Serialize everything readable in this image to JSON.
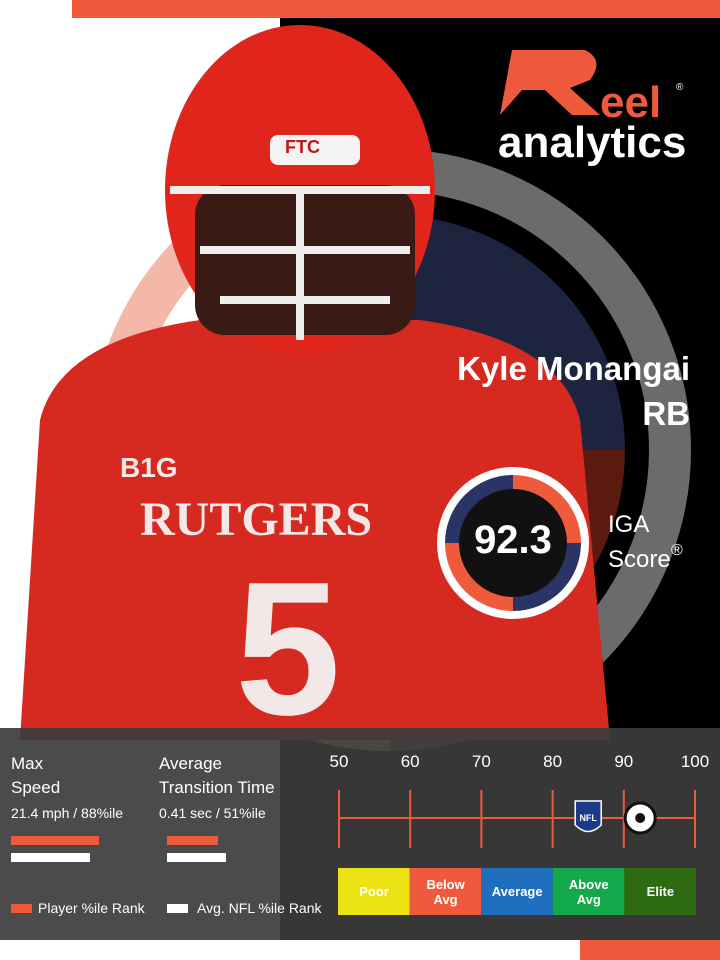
{
  "logo": {
    "word1": "eel",
    "word2": "analytics",
    "reg": "®"
  },
  "photo": {
    "helmet": "FTC",
    "patch": "B1G",
    "jersey": "RUTGERS",
    "number": "5"
  },
  "player": {
    "name": "Kyle Monangai",
    "position": "RB"
  },
  "score": {
    "value": 92.3,
    "label1": "IGA",
    "label2": "Score",
    "reg": "®"
  },
  "metrics": [
    {
      "title": "Max Speed",
      "detail": "21.4 mph / 88%ile",
      "player": 88,
      "avg": 79
    },
    {
      "title": "Average Transition Time",
      "detail": "0.41 sec / 51%ile",
      "player": 51,
      "avg": 59
    }
  ],
  "scale": {
    "lim": [
      50,
      100
    ],
    "ticks": [
      50,
      60,
      70,
      80,
      90,
      100
    ],
    "nfl_avg": 85,
    "nfl_label": "NFL"
  },
  "tiers": [
    {
      "label": "Poor",
      "color": "#ede212"
    },
    {
      "label": "Below Avg",
      "color": "#ef5a3c"
    },
    {
      "label": "Average",
      "color": "#1f6fbf"
    },
    {
      "label": "Above Avg",
      "color": "#13a84a"
    },
    {
      "label": "Elite",
      "color": "#2e6a12"
    }
  ],
  "legend": {
    "player": "Player %ile Rank",
    "avg": "Avg. NFL %ile Rank",
    "player_color": "#ef5a3c",
    "avg_color": "#ffffff"
  }
}
